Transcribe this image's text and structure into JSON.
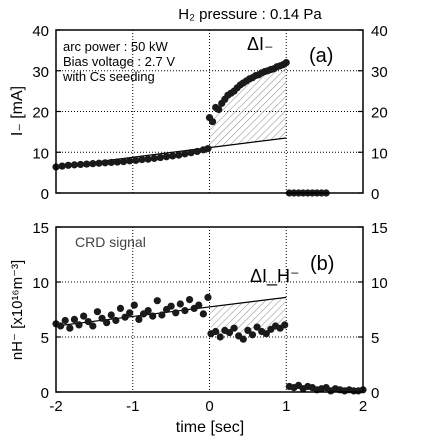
{
  "title": "H₂ pressure : 0.14 Pa",
  "chart_data": [
    {
      "id": "a",
      "type": "scatter",
      "panel_label": "(a)",
      "ylabel": "I₋ [mA]",
      "ylim": [
        0,
        40
      ],
      "yticks": [
        0,
        10,
        20,
        30,
        40
      ],
      "xlim": [
        -2,
        2
      ],
      "grid": true,
      "annotations": [
        "arc power : 50 kW",
        "Bias voltage : 2.7 V",
        "with Cs seeding"
      ],
      "delta_label": "ΔI₋",
      "series": [
        {
          "x": [
            -2.0,
            -1.92,
            -1.84,
            -1.76,
            -1.68,
            -1.6,
            -1.52,
            -1.44,
            -1.36,
            -1.28,
            -1.2,
            -1.12,
            -1.04,
            -0.96,
            -0.88,
            -0.8,
            -0.72,
            -0.64,
            -0.56,
            -0.48,
            -0.4,
            -0.32,
            -0.24,
            -0.16,
            -0.08,
            -0.02,
            0.0,
            0.04,
            0.08,
            0.12,
            0.16,
            0.2,
            0.24,
            0.28,
            0.32,
            0.36,
            0.4,
            0.44,
            0.48,
            0.52,
            0.56,
            0.6,
            0.64,
            0.68,
            0.72,
            0.76,
            0.8,
            0.84,
            0.88,
            0.92,
            0.96,
            1.0,
            1.04,
            1.1,
            1.16,
            1.22,
            1.28,
            1.34,
            1.4,
            1.46,
            1.52
          ],
          "y": [
            6.4,
            6.6,
            6.8,
            6.9,
            7.0,
            7.1,
            7.2,
            7.3,
            7.4,
            7.5,
            7.6,
            7.7,
            7.9,
            8.0,
            8.2,
            8.3,
            8.5,
            8.7,
            8.9,
            9.1,
            9.3,
            9.6,
            9.9,
            10.2,
            10.6,
            10.9,
            18.5,
            17.5,
            21.0,
            20.5,
            22.0,
            23.0,
            24.0,
            24.5,
            25.0,
            25.8,
            26.5,
            27.0,
            27.5,
            28.0,
            28.3,
            28.8,
            29.0,
            29.5,
            29.8,
            30.0,
            30.3,
            30.5,
            31.0,
            31.2,
            31.5,
            32.0,
            0,
            0,
            0,
            0,
            0,
            0,
            0,
            0,
            0
          ]
        }
      ],
      "baseline_fit": {
        "x": [
          -2,
          1
        ],
        "y": [
          6.4,
          13.5
        ]
      }
    },
    {
      "id": "b",
      "type": "scatter",
      "panel_label": "(b)",
      "ylabel": "nH⁻ [x10¹⁶m⁻³]",
      "ylim": [
        0,
        15
      ],
      "yticks": [
        0,
        5,
        10,
        15
      ],
      "xlim": [
        -2,
        2
      ],
      "xticks": [
        -2,
        -1,
        0,
        1,
        2
      ],
      "xlabel": "time [sec]",
      "grid": true,
      "annotations": [
        "CRD signal"
      ],
      "delta_label": "ΔI_H⁻",
      "series": [
        {
          "x": [
            -2.0,
            -1.94,
            -1.88,
            -1.82,
            -1.76,
            -1.7,
            -1.64,
            -1.58,
            -1.52,
            -1.46,
            -1.4,
            -1.34,
            -1.28,
            -1.22,
            -1.16,
            -1.1,
            -1.04,
            -0.98,
            -0.92,
            -0.86,
            -0.8,
            -0.74,
            -0.68,
            -0.62,
            -0.56,
            -0.5,
            -0.44,
            -0.38,
            -0.32,
            -0.26,
            -0.2,
            -0.14,
            -0.08,
            -0.02,
            0.02,
            0.08,
            0.14,
            0.2,
            0.26,
            0.32,
            0.38,
            0.44,
            0.5,
            0.56,
            0.62,
            0.68,
            0.74,
            0.8,
            0.86,
            0.92,
            0.98,
            1.04,
            1.1,
            1.16,
            1.22,
            1.28,
            1.34,
            1.4,
            1.46,
            1.52,
            1.58,
            1.64,
            1.7,
            1.76,
            1.82,
            1.88,
            1.94,
            2.0
          ],
          "y": [
            6.2,
            6.0,
            6.5,
            5.8,
            6.6,
            6.1,
            6.9,
            6.4,
            6.0,
            7.3,
            6.7,
            6.3,
            7.0,
            6.5,
            7.6,
            6.8,
            7.2,
            7.9,
            6.6,
            7.1,
            7.4,
            6.9,
            8.3,
            7.0,
            7.5,
            7.8,
            7.2,
            8.0,
            7.4,
            8.4,
            7.6,
            7.9,
            7.1,
            8.6,
            5.3,
            5.5,
            5.0,
            5.6,
            5.4,
            5.8,
            5.1,
            4.8,
            5.6,
            5.2,
            5.9,
            5.5,
            5.3,
            5.7,
            6.0,
            5.8,
            6.1,
            0.5,
            0.4,
            0.6,
            0.3,
            0.5,
            0.4,
            0.2,
            0.3,
            0.4,
            0.1,
            0.3,
            0.2,
            0.1,
            0.2,
            0.1,
            0.1,
            0.2
          ]
        }
      ],
      "baseline_fit": {
        "x": [
          -2,
          1
        ],
        "y": [
          6.0,
          8.6
        ]
      }
    }
  ]
}
